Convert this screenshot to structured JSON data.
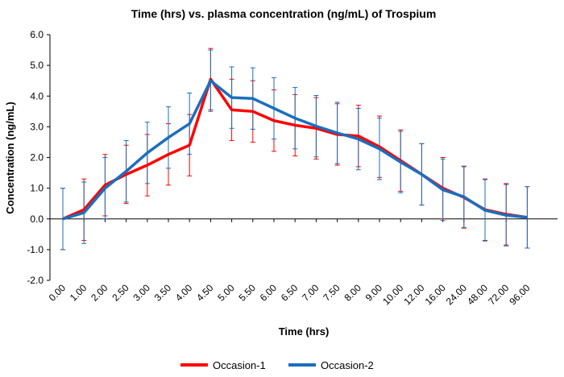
{
  "chart_data": {
    "type": "line",
    "title": "Time (hrs)  vs. plasma concentration (ng/mL) of Trospium",
    "xlabel": "Time (hrs)",
    "ylabel": "Concentration (ng/mL)",
    "ylim": [
      -2.0,
      6.0
    ],
    "yticks": [
      "6.0",
      "5.0",
      "4.0",
      "3.0",
      "2.0",
      "1.0",
      "0.0",
      "-1.0",
      "-2.0"
    ],
    "ytick_values": [
      6,
      5,
      4,
      3,
      2,
      1,
      0,
      -1,
      -2
    ],
    "grid": false,
    "legend_position": "bottom",
    "categories": [
      "0.00",
      "1.00",
      "2.00",
      "2.50",
      "3.00",
      "3.50",
      "4.00",
      "4.50",
      "5.00",
      "5.50",
      "6.00",
      "6.50",
      "7.00",
      "7.50",
      "8.00",
      "9.00",
      "10.00",
      "12.00",
      "16.00",
      "24.00",
      "48.00",
      "72.00",
      "96.00"
    ],
    "series": [
      {
        "name": "Occasion-1",
        "color": "#ff0000",
        "values": [
          0.0,
          0.3,
          1.1,
          1.45,
          1.75,
          2.1,
          2.4,
          4.55,
          3.55,
          3.5,
          3.2,
          3.05,
          2.95,
          2.75,
          2.7,
          2.35,
          1.9,
          1.45,
          1.0,
          0.7,
          0.3,
          0.15,
          0.05
        ],
        "errors": [
          1.0,
          1.0,
          1.0,
          0.95,
          1.0,
          1.0,
          1.0,
          1.0,
          1.0,
          1.0,
          1.0,
          1.0,
          1.0,
          1.0,
          1.0,
          1.0,
          1.0,
          1.0,
          1.0,
          1.0,
          1.0,
          1.0,
          1.0
        ]
      },
      {
        "name": "Occasion-2",
        "color": "#1a6fbd",
        "values": [
          0.0,
          0.2,
          1.0,
          1.55,
          2.15,
          2.65,
          3.1,
          4.5,
          3.95,
          3.92,
          3.6,
          3.28,
          3.02,
          2.8,
          2.6,
          2.28,
          1.85,
          1.45,
          0.95,
          0.72,
          0.28,
          0.12,
          0.05
        ],
        "errors": [
          1.0,
          1.0,
          1.0,
          1.0,
          1.0,
          1.0,
          1.0,
          1.0,
          1.0,
          1.0,
          1.0,
          1.0,
          1.0,
          1.0,
          1.0,
          1.0,
          1.0,
          1.0,
          1.0,
          1.0,
          1.0,
          1.0,
          1.0
        ]
      }
    ]
  }
}
